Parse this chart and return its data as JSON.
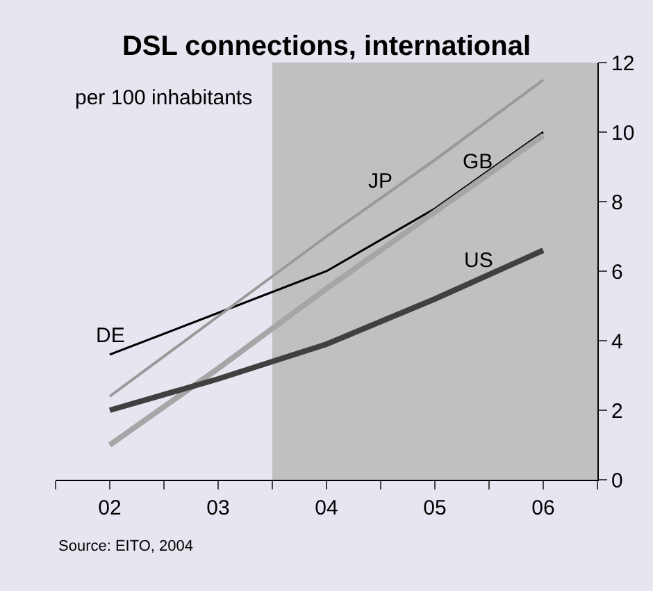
{
  "chart_data": {
    "type": "line",
    "title": "DSL connections, international",
    "ylabel": "per 100 inhabitants",
    "x": [
      2002,
      2003,
      2004,
      2005,
      2006
    ],
    "series": [
      {
        "name": "DE",
        "color": "#000000",
        "values": [
          3.6,
          4.8,
          6.0,
          7.8,
          10.0
        ]
      },
      {
        "name": "JP",
        "color": "#999999",
        "values": [
          2.4,
          4.7,
          7.0,
          9.2,
          11.5
        ]
      },
      {
        "name": "GB",
        "color": "#a6a6a6",
        "values": [
          1.0,
          3.2,
          5.5,
          7.7,
          9.9
        ]
      },
      {
        "name": "US",
        "color": "#404040",
        "values": [
          2.0,
          2.9,
          3.9,
          5.2,
          6.6
        ]
      }
    ],
    "xlim": [
      2001.5,
      2006.5
    ],
    "xticks": [
      {
        "value": 2001.5,
        "label": null
      },
      {
        "value": 2002,
        "label": "02"
      },
      {
        "value": 2002.5,
        "label": null
      },
      {
        "value": 2003,
        "label": "03"
      },
      {
        "value": 2003.5,
        "label": null
      },
      {
        "value": 2004,
        "label": "04"
      },
      {
        "value": 2004.5,
        "label": null
      },
      {
        "value": 2005,
        "label": "05"
      },
      {
        "value": 2005.5,
        "label": null
      },
      {
        "value": 2006,
        "label": "06"
      },
      {
        "value": 2006.5,
        "label": null
      }
    ],
    "ylim": [
      0,
      12
    ],
    "yticks": [
      0,
      2,
      4,
      6,
      8,
      10,
      12
    ],
    "bands": [
      {
        "axis": "x",
        "from": 2003.5,
        "to": 2006.5,
        "label": null,
        "color": "#c0c0c0"
      }
    ],
    "annotations": [
      "Source: EITO, 2004"
    ],
    "grid": false,
    "legend": false,
    "marker": "none",
    "line_style": "solid"
  }
}
